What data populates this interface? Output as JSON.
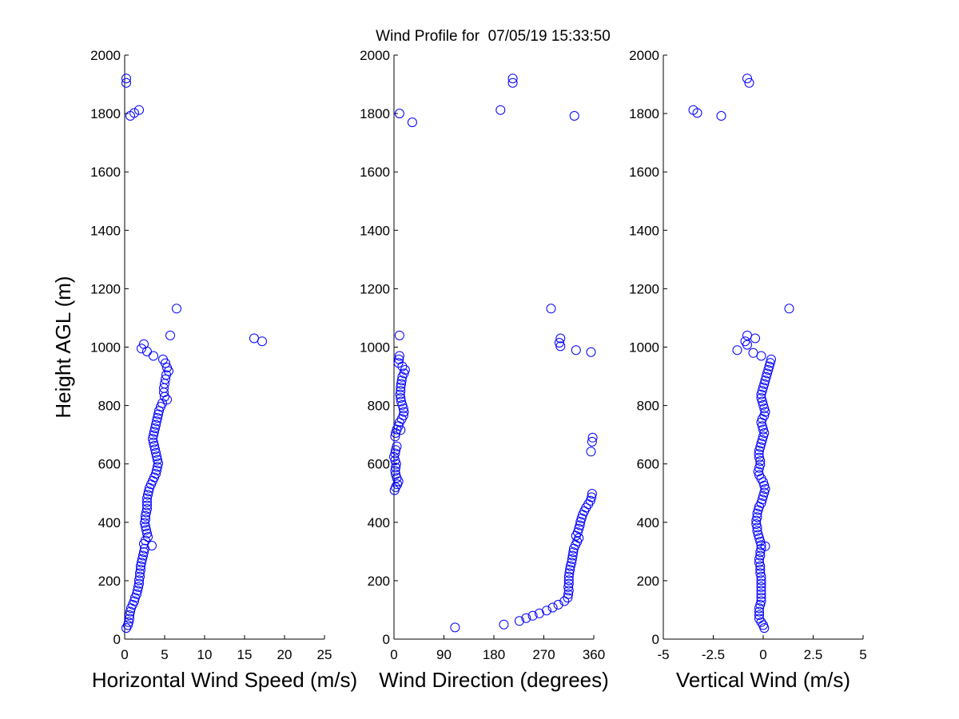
{
  "title": "Wind Profile for  07/05/19 15:33:50",
  "chart_data": [
    {
      "type": "scatter",
      "xlabel": "Horizontal Wind Speed (m/s)",
      "ylabel": "Height AGL (m)",
      "xlim": [
        0,
        25
      ],
      "ylim": [
        0,
        2000
      ],
      "xticks": [
        0,
        5,
        10,
        15,
        20,
        25
      ],
      "xtick_labels": [
        "0",
        "5",
        "10",
        "15",
        "20",
        "25"
      ],
      "yticks": [
        0,
        200,
        400,
        600,
        800,
        1000,
        1200,
        1400,
        1600,
        1800,
        2000
      ],
      "ytick_labels": [
        "0",
        "200",
        "400",
        "600",
        "800",
        "1000",
        "1200",
        "1400",
        "1600",
        "1800",
        "2000"
      ],
      "marker_color": "#0000ff",
      "points": [
        [
          0.2,
          1920
        ],
        [
          0.2,
          1905
        ],
        [
          1.8,
          1812
        ],
        [
          1.2,
          1802
        ],
        [
          0.7,
          1792
        ],
        [
          6.5,
          1132
        ],
        [
          16.2,
          1030
        ],
        [
          17.2,
          1020
        ],
        [
          5.7,
          1040
        ],
        [
          2.4,
          1010
        ],
        [
          2.1,
          995
        ],
        [
          2.8,
          985
        ],
        [
          3.6,
          970
        ],
        [
          4.8,
          958
        ],
        [
          5.1,
          945
        ],
        [
          5.3,
          930
        ],
        [
          5.5,
          918
        ],
        [
          5.2,
          905
        ],
        [
          5.1,
          890
        ],
        [
          5.0,
          875
        ],
        [
          4.9,
          860
        ],
        [
          4.9,
          845
        ],
        [
          5.0,
          830
        ],
        [
          5.3,
          820
        ],
        [
          4.7,
          808
        ],
        [
          4.5,
          796
        ],
        [
          4.3,
          782
        ],
        [
          4.2,
          770
        ],
        [
          4.1,
          758
        ],
        [
          4.0,
          746
        ],
        [
          3.9,
          734
        ],
        [
          3.8,
          722
        ],
        [
          3.7,
          710
        ],
        [
          3.6,
          698
        ],
        [
          3.5,
          686
        ],
        [
          3.6,
          674
        ],
        [
          3.7,
          662
        ],
        [
          3.8,
          650
        ],
        [
          3.9,
          638
        ],
        [
          4.0,
          626
        ],
        [
          4.1,
          614
        ],
        [
          4.2,
          602
        ],
        [
          4.1,
          590
        ],
        [
          4.0,
          578
        ],
        [
          3.9,
          566
        ],
        [
          3.7,
          554
        ],
        [
          3.5,
          542
        ],
        [
          3.3,
          530
        ],
        [
          3.1,
          518
        ],
        [
          3.0,
          506
        ],
        [
          2.9,
          494
        ],
        [
          2.8,
          482
        ],
        [
          2.8,
          470
        ],
        [
          2.8,
          458
        ],
        [
          2.8,
          446
        ],
        [
          2.7,
          434
        ],
        [
          2.6,
          422
        ],
        [
          2.6,
          410
        ],
        [
          2.5,
          398
        ],
        [
          2.6,
          386
        ],
        [
          2.7,
          374
        ],
        [
          2.8,
          362
        ],
        [
          2.9,
          350
        ],
        [
          2.6,
          338
        ],
        [
          2.4,
          326
        ],
        [
          3.4,
          320
        ],
        [
          2.5,
          310
        ],
        [
          2.4,
          298
        ],
        [
          2.3,
          286
        ],
        [
          2.2,
          274
        ],
        [
          2.1,
          262
        ],
        [
          2.0,
          250
        ],
        [
          2.0,
          238
        ],
        [
          1.9,
          226
        ],
        [
          1.9,
          214
        ],
        [
          1.8,
          202
        ],
        [
          1.8,
          190
        ],
        [
          1.7,
          178
        ],
        [
          1.6,
          166
        ],
        [
          1.5,
          154
        ],
        [
          1.3,
          142
        ],
        [
          1.2,
          130
        ],
        [
          1.0,
          118
        ],
        [
          0.8,
          106
        ],
        [
          0.7,
          94
        ],
        [
          0.6,
          82
        ],
        [
          0.6,
          70
        ],
        [
          0.5,
          58
        ],
        [
          0.4,
          48
        ],
        [
          0.2,
          38
        ]
      ]
    },
    {
      "type": "scatter",
      "xlabel": "Wind Direction (degrees)",
      "ylabel": "",
      "xlim": [
        0,
        360
      ],
      "ylim": [
        0,
        2000
      ],
      "xticks": [
        0,
        90,
        180,
        270,
        360
      ],
      "xtick_labels": [
        "0",
        "90",
        "180",
        "270",
        "360"
      ],
      "yticks": [
        0,
        200,
        400,
        600,
        800,
        1000,
        1200,
        1400,
        1600,
        1800,
        2000
      ],
      "ytick_labels": [
        "0",
        "200",
        "400",
        "600",
        "800",
        "1000",
        "1200",
        "1400",
        "1600",
        "1800",
        "2000"
      ],
      "marker_color": "#0000ff",
      "points": [
        [
          214,
          1920
        ],
        [
          214,
          1905
        ],
        [
          192,
          1812
        ],
        [
          10,
          1800
        ],
        [
          33,
          1770
        ],
        [
          325,
          1792
        ],
        [
          283,
          1132
        ],
        [
          10,
          1040
        ],
        [
          300,
          1030
        ],
        [
          298,
          1015
        ],
        [
          300,
          1003
        ],
        [
          328,
          990
        ],
        [
          355,
          983
        ],
        [
          10,
          970
        ],
        [
          9,
          958
        ],
        [
          8,
          946
        ],
        [
          15,
          934
        ],
        [
          20,
          922
        ],
        [
          18,
          910
        ],
        [
          15,
          898
        ],
        [
          14,
          886
        ],
        [
          13,
          874
        ],
        [
          12,
          862
        ],
        [
          12,
          850
        ],
        [
          11,
          838
        ],
        [
          12,
          826
        ],
        [
          13,
          814
        ],
        [
          15,
          802
        ],
        [
          17,
          790
        ],
        [
          18,
          778
        ],
        [
          17,
          766
        ],
        [
          14,
          754
        ],
        [
          10,
          742
        ],
        [
          8,
          730
        ],
        [
          5,
          718
        ],
        [
          12,
          716
        ],
        [
          3,
          706
        ],
        [
          2,
          694
        ],
        [
          358,
          690
        ],
        [
          357,
          676
        ],
        [
          355,
          642
        ],
        [
          5,
          660
        ],
        [
          3,
          648
        ],
        [
          2,
          636
        ],
        [
          0,
          624
        ],
        [
          2,
          612
        ],
        [
          4,
          600
        ],
        [
          3,
          588
        ],
        [
          2,
          576
        ],
        [
          3,
          564
        ],
        [
          5,
          552
        ],
        [
          8,
          540
        ],
        [
          6,
          530
        ],
        [
          3,
          520
        ],
        [
          1,
          510
        ],
        [
          357,
          498
        ],
        [
          356,
          486
        ],
        [
          354,
          474
        ],
        [
          350,
          462
        ],
        [
          346,
          450
        ],
        [
          343,
          438
        ],
        [
          340,
          426
        ],
        [
          338,
          414
        ],
        [
          336,
          402
        ],
        [
          335,
          390
        ],
        [
          333,
          378
        ],
        [
          331,
          366
        ],
        [
          328,
          354
        ],
        [
          333,
          346
        ],
        [
          330,
          334
        ],
        [
          327,
          322
        ],
        [
          324,
          310
        ],
        [
          323,
          298
        ],
        [
          322,
          286
        ],
        [
          321,
          274
        ],
        [
          320,
          262
        ],
        [
          318,
          250
        ],
        [
          317,
          238
        ],
        [
          316,
          226
        ],
        [
          315,
          214
        ],
        [
          315,
          202
        ],
        [
          315,
          190
        ],
        [
          314,
          178
        ],
        [
          315,
          166
        ],
        [
          314,
          154
        ],
        [
          313,
          142
        ],
        [
          307,
          130
        ],
        [
          296,
          118
        ],
        [
          286,
          108
        ],
        [
          275,
          98
        ],
        [
          262,
          88
        ],
        [
          250,
          80
        ],
        [
          238,
          72
        ],
        [
          226,
          62
        ],
        [
          198,
          50
        ],
        [
          110,
          40
        ]
      ]
    },
    {
      "type": "scatter",
      "xlabel": "Vertical Wind (m/s)",
      "ylabel": "",
      "xlim": [
        -5,
        5
      ],
      "ylim": [
        0,
        2000
      ],
      "xticks": [
        -5,
        -2.5,
        0,
        2.5,
        5
      ],
      "xtick_labels": [
        "-5",
        "-2.5",
        "0",
        "2.5",
        "5"
      ],
      "yticks": [
        0,
        200,
        400,
        600,
        800,
        1000,
        1200,
        1400,
        1600,
        1800,
        2000
      ],
      "ytick_labels": [
        "0",
        "200",
        "400",
        "600",
        "800",
        "1000",
        "1200",
        "1400",
        "1600",
        "1800",
        "2000"
      ],
      "marker_color": "#0000ff",
      "points": [
        [
          -0.8,
          1920
        ],
        [
          -0.7,
          1905
        ],
        [
          -3.5,
          1812
        ],
        [
          -3.3,
          1802
        ],
        [
          -2.1,
          1792
        ],
        [
          1.3,
          1132
        ],
        [
          -0.8,
          1040
        ],
        [
          -0.4,
          1030
        ],
        [
          -0.9,
          1020
        ],
        [
          -0.8,
          1008
        ],
        [
          -1.3,
          990
        ],
        [
          -0.5,
          980
        ],
        [
          -0.1,
          970
        ],
        [
          0.4,
          958
        ],
        [
          0.35,
          946
        ],
        [
          0.3,
          934
        ],
        [
          0.25,
          922
        ],
        [
          0.2,
          910
        ],
        [
          0.15,
          898
        ],
        [
          0.1,
          886
        ],
        [
          0.05,
          874
        ],
        [
          0.0,
          862
        ],
        [
          -0.05,
          850
        ],
        [
          -0.1,
          838
        ],
        [
          -0.1,
          826
        ],
        [
          -0.05,
          814
        ],
        [
          0.0,
          802
        ],
        [
          0.05,
          790
        ],
        [
          0.1,
          778
        ],
        [
          0.05,
          766
        ],
        [
          -0.05,
          754
        ],
        [
          -0.1,
          742
        ],
        [
          -0.05,
          730
        ],
        [
          0.0,
          718
        ],
        [
          0.05,
          706
        ],
        [
          0.0,
          694
        ],
        [
          -0.05,
          682
        ],
        [
          -0.1,
          670
        ],
        [
          -0.15,
          658
        ],
        [
          -0.2,
          646
        ],
        [
          -0.22,
          634
        ],
        [
          -0.2,
          622
        ],
        [
          -0.15,
          610
        ],
        [
          -0.15,
          598
        ],
        [
          -0.2,
          586
        ],
        [
          -0.25,
          574
        ],
        [
          -0.2,
          562
        ],
        [
          -0.1,
          550
        ],
        [
          0.0,
          538
        ],
        [
          0.05,
          526
        ],
        [
          0.1,
          514
        ],
        [
          0.05,
          502
        ],
        [
          0.0,
          490
        ],
        [
          -0.05,
          478
        ],
        [
          -0.1,
          466
        ],
        [
          -0.2,
          454
        ],
        [
          -0.25,
          442
        ],
        [
          -0.3,
          430
        ],
        [
          -0.3,
          418
        ],
        [
          -0.35,
          406
        ],
        [
          -0.35,
          394
        ],
        [
          -0.3,
          382
        ],
        [
          -0.3,
          370
        ],
        [
          -0.25,
          358
        ],
        [
          -0.2,
          346
        ],
        [
          -0.15,
          334
        ],
        [
          -0.1,
          322
        ],
        [
          0.1,
          318
        ],
        [
          -0.1,
          310
        ],
        [
          -0.15,
          298
        ],
        [
          -0.15,
          286
        ],
        [
          -0.2,
          274
        ],
        [
          -0.2,
          262
        ],
        [
          -0.15,
          250
        ],
        [
          -0.15,
          238
        ],
        [
          -0.15,
          226
        ],
        [
          -0.1,
          214
        ],
        [
          -0.1,
          202
        ],
        [
          -0.1,
          190
        ],
        [
          -0.1,
          178
        ],
        [
          -0.1,
          166
        ],
        [
          -0.1,
          154
        ],
        [
          -0.1,
          142
        ],
        [
          -0.1,
          130
        ],
        [
          -0.15,
          118
        ],
        [
          -0.2,
          106
        ],
        [
          -0.2,
          94
        ],
        [
          -0.2,
          82
        ],
        [
          -0.2,
          70
        ],
        [
          -0.1,
          58
        ],
        [
          0.0,
          48
        ],
        [
          0.05,
          38
        ]
      ]
    }
  ]
}
